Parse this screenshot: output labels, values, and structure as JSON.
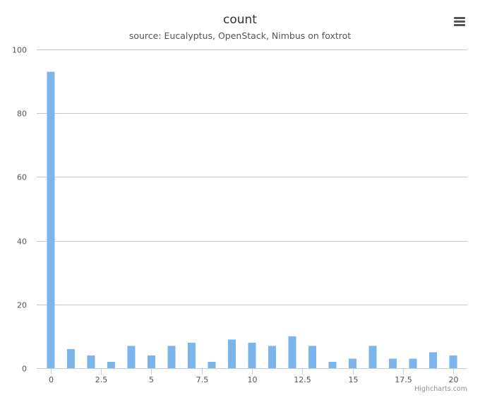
{
  "chart_data": {
    "type": "bar",
    "title": "count",
    "subtitle": "source: Eucalyptus, OpenStack, Nimbus on foxtrot",
    "x": [
      0,
      1,
      2,
      3,
      4,
      5,
      6,
      7,
      8,
      9,
      10,
      11,
      12,
      13,
      14,
      15,
      16,
      17,
      18,
      19,
      20
    ],
    "values": [
      93,
      6,
      4,
      2,
      7,
      4,
      7,
      8,
      2,
      9,
      8,
      7,
      10,
      7,
      2,
      3,
      7,
      3,
      3,
      5,
      4
    ],
    "xlim": [
      -0.7,
      20.7
    ],
    "ylim": [
      0,
      100
    ],
    "x_ticks": [
      "0",
      "2.5",
      "5",
      "7.5",
      "10",
      "12.5",
      "15",
      "17.5",
      "20"
    ],
    "y_ticks": [
      "0",
      "20",
      "40",
      "60",
      "80",
      "100"
    ],
    "grid": true,
    "legend": "none",
    "bar_color": "#7cb5ec"
  },
  "credits": "Highcharts.com",
  "menu_icon": "hamburger-menu-icon"
}
